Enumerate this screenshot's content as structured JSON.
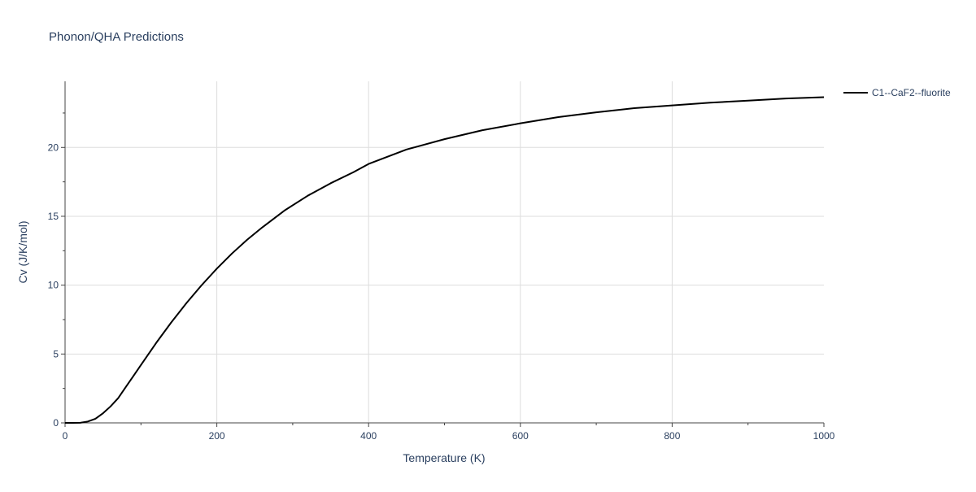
{
  "chart_data": {
    "type": "line",
    "title": "Phonon/QHA Predictions",
    "xlabel": "Temperature (K)",
    "ylabel": "Cv (J/K/mol)",
    "xlim": [
      0,
      1000
    ],
    "ylim": [
      0,
      24.8
    ],
    "x_ticks": [
      0,
      200,
      400,
      600,
      800,
      1000
    ],
    "y_ticks": [
      0,
      5,
      10,
      15,
      20
    ],
    "x_minor_ticks": [
      100,
      300,
      500,
      700,
      900
    ],
    "grid": true,
    "legend_position": "top-right",
    "series": [
      {
        "name": "C1--CaF2--fluorite",
        "color": "#000000",
        "x": [
          0,
          10,
          20,
          30,
          40,
          50,
          60,
          70,
          80,
          90,
          100,
          120,
          140,
          160,
          180,
          200,
          220,
          240,
          260,
          290,
          320,
          350,
          380,
          400,
          450,
          500,
          550,
          600,
          650,
          700,
          750,
          800,
          850,
          900,
          950,
          1000
        ],
        "y": [
          0,
          0,
          0.01,
          0.1,
          0.3,
          0.7,
          1.2,
          1.8,
          2.6,
          3.4,
          4.2,
          5.8,
          7.3,
          8.7,
          10.0,
          11.2,
          12.3,
          13.3,
          14.2,
          15.45,
          16.5,
          17.4,
          18.2,
          18.8,
          19.85,
          20.6,
          21.25,
          21.75,
          22.2,
          22.55,
          22.85,
          23.05,
          23.25,
          23.4,
          23.55,
          23.65
        ]
      }
    ]
  }
}
